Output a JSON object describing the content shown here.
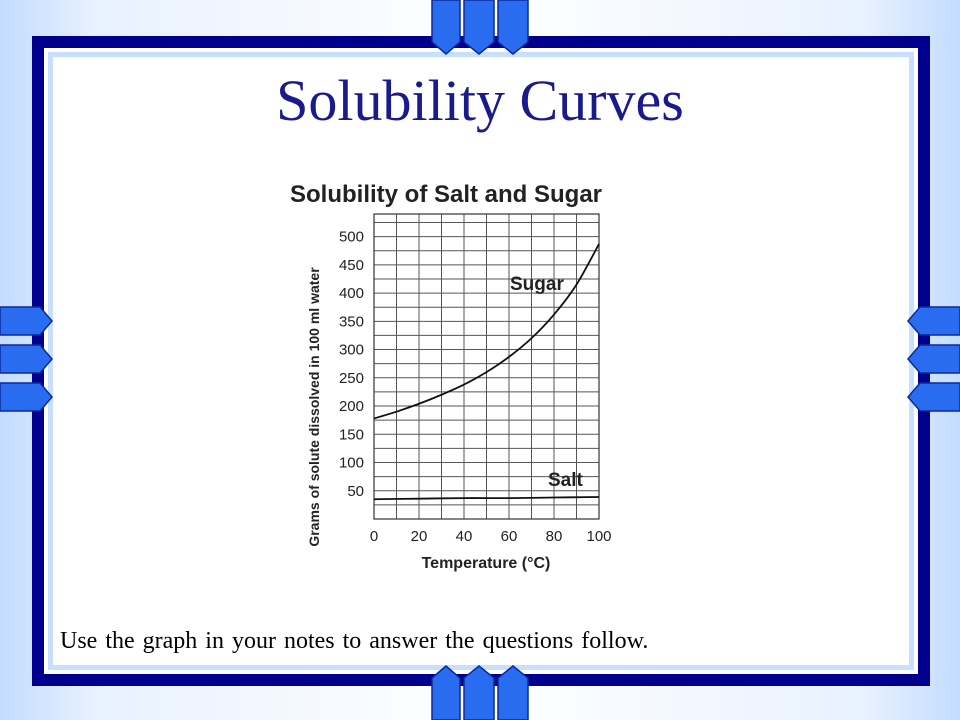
{
  "slide": {
    "title": "Solubility Curves",
    "footer": "Use the graph in your notes to answer the questions follow."
  },
  "colors": {
    "frame_dark": "#00008c",
    "frame_light": "#c8e0ff",
    "deco_blue": "#2a6cf0",
    "title": "#1a1a8c"
  },
  "chart_data": {
    "type": "line",
    "title": "Solubility of Salt and Sugar",
    "xlabel": "Temperature (°C)",
    "ylabel": "Grams of solute dissolved in 100 ml water",
    "xlim": [
      0,
      100
    ],
    "ylim": [
      0,
      540
    ],
    "x_ticks": [
      0,
      20,
      40,
      60,
      80,
      100
    ],
    "y_ticks": [
      50,
      100,
      150,
      200,
      250,
      300,
      350,
      400,
      450,
      500
    ],
    "grid": true,
    "series": [
      {
        "name": "Sugar",
        "x": [
          0,
          10,
          20,
          30,
          40,
          50,
          60,
          70,
          80,
          90,
          100
        ],
        "y": [
          178,
          190,
          204,
          220,
          238,
          260,
          287,
          320,
          362,
          415,
          487
        ]
      },
      {
        "name": "Salt",
        "x": [
          0,
          20,
          40,
          60,
          80,
          100
        ],
        "y": [
          35,
          36,
          37,
          37,
          38,
          39
        ]
      }
    ]
  }
}
